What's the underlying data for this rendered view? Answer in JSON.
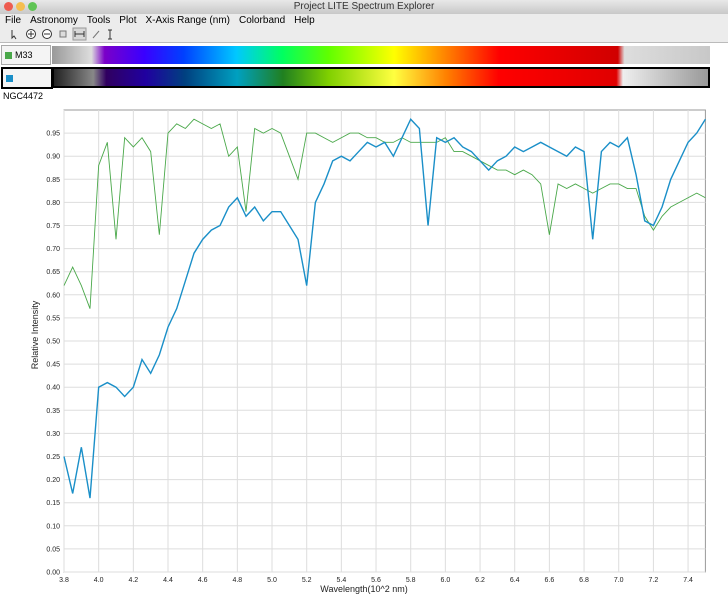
{
  "window": {
    "title": "Project LITE Spectrum Explorer"
  },
  "menu": [
    "File",
    "Astronomy",
    "Tools",
    "Plot",
    "X-Axis Range (nm)",
    "Colorband",
    "Help"
  ],
  "chart_data": {
    "type": "line",
    "xlabel": "Wavelength(10^2 nm)",
    "ylabel": "Relative Intensity",
    "x": [
      3.8,
      3.85,
      3.9,
      3.95,
      4.0,
      4.05,
      4.1,
      4.15,
      4.2,
      4.25,
      4.3,
      4.35,
      4.4,
      4.45,
      4.5,
      4.55,
      4.6,
      4.65,
      4.7,
      4.75,
      4.8,
      4.85,
      4.9,
      4.95,
      5.0,
      5.05,
      5.1,
      5.15,
      5.2,
      5.25,
      5.3,
      5.35,
      5.4,
      5.45,
      5.5,
      5.55,
      5.6,
      5.65,
      5.7,
      5.75,
      5.8,
      5.85,
      5.9,
      5.95,
      6.0,
      6.05,
      6.1,
      6.15,
      6.2,
      6.25,
      6.3,
      6.35,
      6.4,
      6.45,
      6.5,
      6.55,
      6.6,
      6.65,
      6.7,
      6.75,
      6.8,
      6.85,
      6.9,
      6.95,
      7.0,
      7.05,
      7.1,
      7.15,
      7.2,
      7.25,
      7.3,
      7.35,
      7.4,
      7.45,
      7.5
    ],
    "series": [
      {
        "name": "M33",
        "color": "#4aa84a",
        "values": [
          0.62,
          0.66,
          0.62,
          0.57,
          0.88,
          0.93,
          0.72,
          0.94,
          0.92,
          0.94,
          0.91,
          0.73,
          0.95,
          0.97,
          0.96,
          0.98,
          0.97,
          0.96,
          0.97,
          0.9,
          0.92,
          0.78,
          0.96,
          0.95,
          0.96,
          0.95,
          0.9,
          0.85,
          0.95,
          0.95,
          0.94,
          0.93,
          0.94,
          0.95,
          0.95,
          0.94,
          0.94,
          0.93,
          0.93,
          0.94,
          0.93,
          0.93,
          0.93,
          0.93,
          0.94,
          0.91,
          0.91,
          0.9,
          0.89,
          0.88,
          0.87,
          0.87,
          0.86,
          0.87,
          0.86,
          0.84,
          0.73,
          0.84,
          0.83,
          0.84,
          0.83,
          0.82,
          0.83,
          0.84,
          0.84,
          0.83,
          0.83,
          0.77,
          0.74,
          0.77,
          0.79,
          0.8,
          0.81,
          0.82,
          0.81
        ]
      },
      {
        "name": "NGC4472",
        "color": "#1a8fc8",
        "values": [
          0.25,
          0.17,
          0.27,
          0.16,
          0.4,
          0.41,
          0.4,
          0.38,
          0.4,
          0.46,
          0.43,
          0.47,
          0.53,
          0.57,
          0.63,
          0.69,
          0.72,
          0.74,
          0.75,
          0.79,
          0.81,
          0.77,
          0.79,
          0.76,
          0.78,
          0.78,
          0.75,
          0.72,
          0.62,
          0.8,
          0.84,
          0.89,
          0.9,
          0.89,
          0.91,
          0.93,
          0.92,
          0.93,
          0.9,
          0.94,
          0.98,
          0.96,
          0.75,
          0.94,
          0.93,
          0.94,
          0.92,
          0.91,
          0.89,
          0.87,
          0.89,
          0.9,
          0.92,
          0.91,
          0.92,
          0.93,
          0.92,
          0.91,
          0.9,
          0.92,
          0.91,
          0.72,
          0.91,
          0.93,
          0.92,
          0.94,
          0.86,
          0.76,
          0.75,
          0.79,
          0.85,
          0.89,
          0.93,
          0.95,
          0.98
        ]
      }
    ],
    "xlim": [
      3.8,
      7.5
    ],
    "ylim": [
      0,
      1.0
    ],
    "xticks": [
      3.8,
      {
        "value": 4,
        "label": "4.0"
      },
      4.2,
      4.4,
      4.6,
      4.8,
      {
        "value": 5,
        "label": "5.0"
      },
      5.2,
      5.4,
      5.6,
      5.8,
      {
        "value": 6,
        "label": "6.0"
      },
      6.2,
      6.4,
      6.6,
      6.8,
      {
        "value": 7,
        "label": "7.0"
      },
      7.2,
      7.4
    ],
    "yticks": [
      {
        "value": 0,
        "label": "0.00"
      },
      0.05,
      {
        "value": 0.1,
        "label": "0.10"
      },
      0.15,
      {
        "value": 0.2,
        "label": "0.20"
      },
      0.25,
      {
        "value": 0.3,
        "label": "0.30"
      },
      0.35,
      {
        "value": 0.4,
        "label": "0.40"
      },
      0.45,
      {
        "value": 0.5,
        "label": "0.50"
      },
      0.55,
      {
        "value": 0.6,
        "label": "0.60"
      },
      0.65,
      {
        "value": 0.7,
        "label": "0.70"
      },
      0.75,
      {
        "value": 0.8,
        "label": "0.80"
      },
      0.85,
      {
        "value": 0.9,
        "label": "0.90"
      },
      0.95
    ],
    "grid": true
  }
}
